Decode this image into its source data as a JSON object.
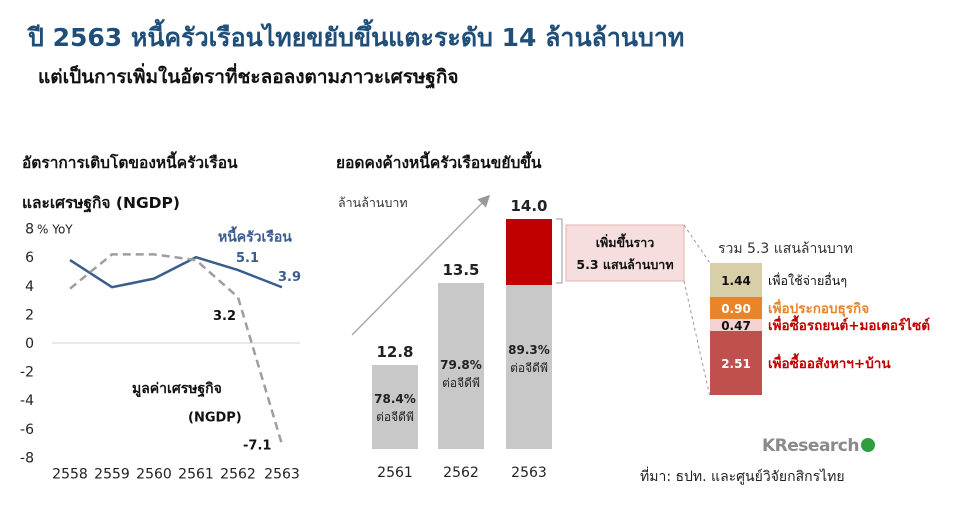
{
  "header": {
    "title": "ปี 2563 หนี้ครัวเรือนไทยขยับขึ้นแตะระดับ 14 ล้านล้านบาท",
    "subtitle": "แต่เป็นการเพิ่มในอัตราที่ชะลอลงตามภาวะเศรษฐกิจ"
  },
  "chart_data": [
    {
      "type": "line",
      "title_line1": "อัตราการเติบโตของหนี้ครัวเรือน",
      "title_line2": "และเศรษฐกิจ (NGDP)",
      "y_unit": "% YoY",
      "x": [
        "2558",
        "2559",
        "2560",
        "2561",
        "2562",
        "2563"
      ],
      "y_ticks": [
        "8",
        "6",
        "4",
        "2",
        "0",
        "-2",
        "-4",
        "-6",
        "-8"
      ],
      "ylim": [
        -8,
        8
      ],
      "series": [
        {
          "name": "หนี้ครัวเรือน",
          "values": [
            5.8,
            3.9,
            4.5,
            6.0,
            5.1,
            3.9
          ],
          "color": "#3a5d8f",
          "style": "solid"
        },
        {
          "name_line1": "มูลค่าเศรษฐกิจ",
          "name_line2": "(NGDP)",
          "values": [
            3.8,
            6.2,
            6.2,
            5.8,
            3.2,
            -7.1
          ],
          "color": "#9e9e9e",
          "style": "dashed"
        }
      ],
      "data_labels": [
        "5.1",
        "3.9",
        "3.2",
        "-7.1"
      ]
    },
    {
      "type": "bar",
      "title": "ยอดคงค้างหนี้ครัวเรือนขยับขึ้น",
      "y_unit": "ล้านล้านบาท",
      "categories": [
        "2561",
        "2562",
        "2563"
      ],
      "values": [
        12.8,
        13.5,
        14.0
      ],
      "value_labels": [
        "12.8",
        "13.5",
        "14.0"
      ],
      "base_2563": 8.7,
      "increase_2563": 5.3,
      "ratio_labels": [
        "78.4%",
        "79.8%",
        "89.3%"
      ],
      "ratio_caption": "ต่อจีดีพี",
      "colors": {
        "bar": "#c8c8c8",
        "increase": "#c00000",
        "callout_bg": "#f6dede"
      },
      "callout_line1": "เพิ่มขึ้นราว",
      "callout_line2": "5.3 แสนล้านบาท"
    },
    {
      "type": "bar",
      "subtype": "stacked",
      "title": "รวม 5.3 แสนล้านบาท",
      "segments": [
        {
          "value": 1.44,
          "label": "1.44",
          "name": "เพื่อใช้จ่ายอื่นๆ",
          "color": "#d8cfa8",
          "label_color": "#111111"
        },
        {
          "value": 0.9,
          "label": "0.90",
          "name": "เพื่อประกอบธุรกิจ",
          "color": "#e8852a",
          "label_color": "#e8852a"
        },
        {
          "value": 0.47,
          "label": "0.47",
          "name": "เพื่อซื้อรถยนต์+มอเตอร์ไซต์",
          "color": "#f4d2d2",
          "label_color": "#c00000"
        },
        {
          "value": 2.51,
          "label": "2.51",
          "name": "เพื่อซื้ออสังหาฯ+บ้าน",
          "color": "#c0504d",
          "label_color": "#c00000"
        }
      ]
    }
  ],
  "footer": {
    "brand": "KResearch",
    "source": "ที่มา: ธปท. และศูนย์วิจัยกสิกรไทย"
  }
}
